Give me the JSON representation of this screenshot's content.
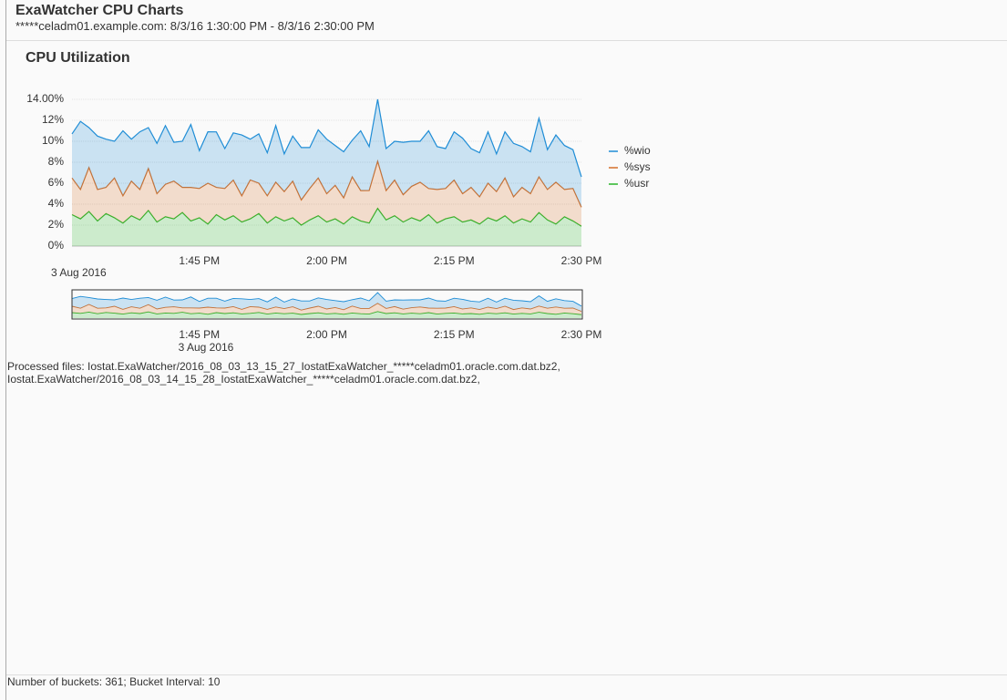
{
  "header": {
    "title": "ExaWatcher CPU Charts",
    "subtitle": "*****celadm01.example.com: 8/3/16 1:30:00 PM - 8/3/16 2:30:00 PM"
  },
  "panel_title": "CPU Utilization",
  "chart_data": {
    "type": "stacked-area",
    "categories": [
      null,
      null,
      null,
      null,
      null,
      null,
      null,
      null,
      null,
      null,
      null,
      null,
      null,
      null,
      null,
      "1:45 PM",
      null,
      null,
      null,
      null,
      null,
      null,
      null,
      null,
      null,
      null,
      null,
      null,
      null,
      null,
      "2:00 PM",
      null,
      null,
      null,
      null,
      null,
      null,
      null,
      null,
      null,
      null,
      null,
      null,
      null,
      null,
      "2:15 PM",
      null,
      null,
      null,
      null,
      null,
      null,
      null,
      null,
      null,
      null,
      null,
      null,
      null,
      null,
      "2:30 PM"
    ],
    "x_date_label": "3 Aug 2016",
    "ylim": [
      0,
      14
    ],
    "yticks": [
      {
        "value": 0,
        "label": "0%"
      },
      {
        "value": 2,
        "label": "2%"
      },
      {
        "value": 4,
        "label": "4%"
      },
      {
        "value": 6,
        "label": "6%"
      },
      {
        "value": 8,
        "label": "8%"
      },
      {
        "value": 10,
        "label": "10%"
      },
      {
        "value": 12,
        "label": "12%"
      },
      {
        "value": 14,
        "label": "14.00%"
      }
    ],
    "grid": true,
    "series": [
      {
        "name": "%wio",
        "color": "#1f8dd6",
        "values": [
          4.2,
          6.5,
          3.8,
          5.1,
          4.6,
          3.5,
          6.2,
          4.0,
          5.5,
          3.9,
          4.8,
          5.6,
          3.7,
          4.4,
          6.0,
          3.6,
          4.9,
          5.3,
          3.8,
          4.5,
          5.8,
          3.9,
          4.7,
          4.1,
          5.4,
          3.6,
          4.3,
          5.0,
          3.9,
          4.6,
          5.2,
          3.8,
          4.4,
          3.5,
          5.7,
          4.2,
          5.9,
          4.0,
          3.7,
          5.0,
          4.3,
          3.9,
          5.5,
          4.1,
          3.8,
          4.6,
          5.3,
          3.7,
          4.2,
          4.9,
          3.6,
          4.4,
          5.1,
          3.9,
          4.0,
          5.6,
          3.8,
          4.5,
          4.2,
          3.7,
          2.9
        ]
      },
      {
        "name": "%sys",
        "color": "#d4702a",
        "values": [
          3.5,
          2.8,
          4.2,
          3.0,
          2.5,
          3.8,
          2.6,
          3.3,
          2.9,
          4.0,
          2.7,
          3.1,
          3.6,
          2.4,
          3.2,
          2.8,
          3.9,
          2.6,
          3.0,
          3.4,
          2.5,
          3.7,
          2.9,
          2.6,
          3.3,
          2.8,
          3.5,
          2.4,
          3.0,
          3.6,
          2.7,
          3.2,
          2.5,
          3.8,
          2.9,
          3.1,
          4.5,
          2.8,
          3.4,
          2.6,
          3.0,
          3.7,
          2.5,
          3.2,
          2.9,
          3.5,
          2.7,
          3.1,
          2.6,
          3.3,
          2.8,
          3.6,
          2.5,
          3.0,
          2.7,
          3.4,
          2.9,
          4.0,
          2.6,
          3.1,
          1.8
        ]
      },
      {
        "name": "%usr",
        "color": "#2bb52b",
        "values": [
          3.0,
          2.6,
          3.3,
          2.4,
          3.1,
          2.7,
          2.2,
          2.9,
          2.5,
          3.4,
          2.3,
          2.8,
          2.6,
          3.2,
          2.4,
          2.7,
          2.1,
          3.0,
          2.5,
          2.9,
          2.3,
          2.6,
          3.1,
          2.2,
          2.8,
          2.4,
          2.7,
          2.0,
          2.5,
          2.9,
          2.3,
          2.6,
          2.1,
          2.8,
          2.4,
          2.2,
          3.6,
          2.5,
          2.9,
          2.3,
          2.7,
          2.4,
          3.0,
          2.2,
          2.6,
          2.8,
          2.3,
          2.5,
          2.1,
          2.7,
          2.4,
          2.9,
          2.2,
          2.6,
          2.3,
          3.2,
          2.5,
          2.1,
          2.8,
          2.4,
          1.9
        ]
      }
    ]
  },
  "processed_files": [
    "Processed files: Iostat.ExaWatcher/2016_08_03_13_15_27_IostatExaWatcher_*****celadm01.oracle.com.dat.bz2,",
    "Iostat.ExaWatcher/2016_08_03_14_15_28_IostatExaWatcher_*****celadm01.oracle.com.dat.bz2,"
  ],
  "footer": "Number of buckets: 361; Bucket Interval: 10"
}
